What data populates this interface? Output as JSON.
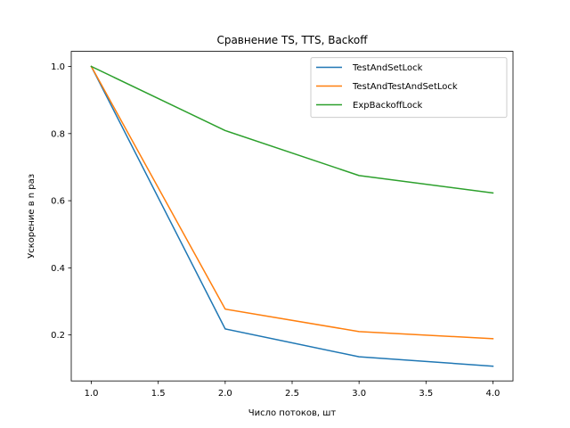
{
  "chart_data": {
    "type": "line",
    "title": "Сравнение TS, TTS, Backoff",
    "xlabel": "Число потоков, шт",
    "ylabel": "Ускорение в n раз",
    "x": [
      1.0,
      2.0,
      3.0,
      4.0
    ],
    "xlim": [
      0.85,
      4.15
    ],
    "ylim": [
      0.063,
      1.045
    ],
    "xticks": [
      1.0,
      1.5,
      2.0,
      2.5,
      3.0,
      3.5,
      4.0
    ],
    "xtick_labels": [
      "1.0",
      "1.5",
      "2.0",
      "2.5",
      "3.0",
      "3.5",
      "4.0"
    ],
    "yticks": [
      0.2,
      0.4,
      0.6,
      0.8,
      1.0
    ],
    "ytick_labels": [
      "0.2",
      "0.4",
      "0.6",
      "0.8",
      "1.0"
    ],
    "grid": false,
    "legend_position": "top-right",
    "series": [
      {
        "name": "TestAndSetLock",
        "color": "#1f77b4",
        "values": [
          1.0,
          0.218,
          0.135,
          0.107
        ]
      },
      {
        "name": "TestAndTestAndSetLock",
        "color": "#ff7f0e",
        "values": [
          1.0,
          0.277,
          0.21,
          0.189
        ]
      },
      {
        "name": "ExpBackoffLock",
        "color": "#2ca02c",
        "values": [
          1.0,
          0.809,
          0.675,
          0.623
        ]
      }
    ]
  }
}
